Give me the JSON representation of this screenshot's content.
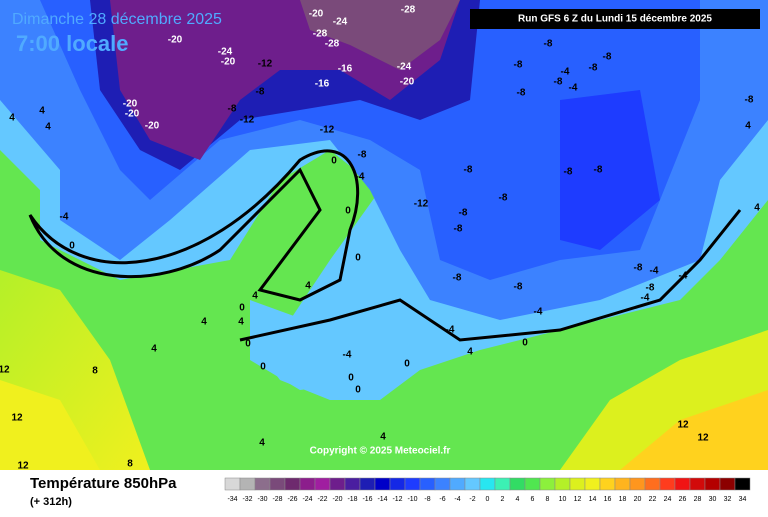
{
  "header": {
    "date": "Dimanche 28 décembre 2025",
    "time": "7:00 locale",
    "run": "Run GFS 6 Z du Lundi 15 décembre 2025"
  },
  "copyright": "Copyright © 2025 Meteociel.fr",
  "footer": {
    "title": "Température 850hPa",
    "step": "(+ 312h)"
  },
  "legend": {
    "values": [
      -34,
      -32,
      -30,
      -28,
      -26,
      -24,
      -22,
      -20,
      -18,
      -16,
      -14,
      -12,
      -10,
      -8,
      -6,
      -4,
      -2,
      0,
      2,
      4,
      6,
      8,
      10,
      12,
      14,
      16,
      18,
      20,
      22,
      24,
      26,
      28,
      30,
      32,
      34
    ],
    "colors": [
      "#d8d8d8",
      "#b4b4b4",
      "#8c6e8c",
      "#7a4a7a",
      "#6e2a6e",
      "#8c1e8c",
      "#a01ea0",
      "#6e1e8c",
      "#4a1ea0",
      "#1e1eb4",
      "#0000c8",
      "#1428e6",
      "#1e3cff",
      "#2860ff",
      "#3c82ff",
      "#50aaff",
      "#64c8ff",
      "#28e6f0",
      "#3cf0b4",
      "#32dc64",
      "#50e650",
      "#8cf03c",
      "#b4f028",
      "#dcf01e",
      "#f0f01e",
      "#ffd21e",
      "#ffb41e",
      "#ff961e",
      "#ff6e1e",
      "#ff3c1e",
      "#f01414",
      "#d20a0a",
      "#b40000",
      "#8c0000",
      "#000000"
    ]
  },
  "map_labels": [
    -20,
    -24,
    -28,
    -28,
    -28,
    -20,
    -24,
    -20,
    -12,
    -16,
    -24,
    -20,
    -16,
    -20,
    -20,
    -20,
    -8,
    -8,
    -12,
    -12,
    -8,
    -4,
    0,
    -8,
    -8,
    -8,
    -8,
    -4,
    -8,
    -8,
    -4,
    -8,
    -8,
    -8,
    -8,
    -8,
    -12,
    -8,
    -8,
    -8,
    -8,
    -8,
    -8,
    -4,
    -8,
    -4,
    -4,
    -4,
    -4,
    0,
    4,
    4,
    4,
    -4,
    0,
    0,
    0,
    4,
    4,
    4,
    4,
    0,
    0,
    4,
    -4,
    0,
    0,
    0,
    0,
    4,
    8,
    12,
    12,
    12,
    8,
    4,
    4,
    12,
    12,
    4,
    4
  ]
}
